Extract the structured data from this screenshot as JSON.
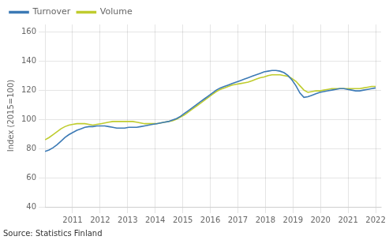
{
  "chart_data": {
    "type": "line",
    "ylabel": "Index (2015=100)",
    "annotations": [
      "Source: Statistics Finland"
    ],
    "x": [
      2010.0,
      2010.1446,
      2010.2892,
      2010.4337,
      2010.5783,
      2010.7229,
      2010.8675,
      2011.012,
      2011.1566,
      2011.3012,
      2011.4458,
      2011.5904,
      2011.7349,
      2011.8795,
      2012.0241,
      2012.1687,
      2012.3133,
      2012.4578,
      2012.6024,
      2012.747,
      2012.8916,
      2013.0361,
      2013.1807,
      2013.3253,
      2013.4699,
      2013.6145,
      2013.759,
      2013.9036,
      2014.0482,
      2014.1928,
      2014.3373,
      2014.4819,
      2014.6265,
      2014.7711,
      2014.9157,
      2015.0602,
      2015.2048,
      2015.3494,
      2015.494,
      2015.6386,
      2015.7831,
      2015.9277,
      2016.0723,
      2016.2169,
      2016.3614,
      2016.506,
      2016.6506,
      2016.7952,
      2016.9398,
      2017.0843,
      2017.2289,
      2017.3735,
      2017.5181,
      2017.6627,
      2017.8072,
      2017.9518,
      2018.0964,
      2018.241,
      2018.3855,
      2018.5301,
      2018.6747,
      2018.8193,
      2018.9639,
      2019.1084,
      2019.253,
      2019.3976,
      2019.5422,
      2019.6867,
      2019.8313,
      2019.9759,
      2020.1205,
      2020.2651,
      2020.4096,
      2020.5542,
      2020.6988,
      2020.8434,
      2020.988,
      2021.1325,
      2021.2771,
      2021.4217,
      2021.5663,
      2021.7108,
      2021.8554,
      2022.0
    ],
    "series": [
      {
        "name": "Turnover",
        "color": "#3c7ab5",
        "values": [
          78.0,
          79.0,
          80.5,
          82.5,
          85.0,
          87.5,
          89.5,
          91.0,
          92.5,
          93.5,
          94.5,
          95.0,
          95.0,
          95.5,
          95.5,
          95.5,
          95.0,
          94.5,
          94.0,
          94.0,
          94.0,
          94.5,
          94.5,
          94.5,
          95.0,
          95.5,
          96.0,
          96.5,
          97.0,
          97.5,
          98.0,
          98.5,
          99.5,
          100.5,
          102.0,
          104.0,
          106.0,
          108.0,
          110.0,
          112.0,
          114.0,
          116.0,
          118.0,
          120.0,
          121.5,
          122.5,
          123.5,
          124.5,
          125.5,
          126.5,
          127.5,
          128.5,
          129.5,
          130.5,
          131.5,
          132.5,
          133.0,
          133.5,
          133.5,
          133.0,
          132.0,
          130.0,
          127.0,
          123.0,
          118.0,
          115.0,
          115.5,
          116.5,
          117.5,
          118.5,
          119.0,
          119.5,
          120.0,
          120.5,
          121.0,
          121.0,
          120.5,
          120.0,
          119.5,
          119.5,
          120.0,
          120.5,
          121.0,
          121.5
        ]
      },
      {
        "name": "Volume",
        "color": "#bfcc2e",
        "values": [
          86.0,
          87.5,
          89.5,
          91.5,
          93.5,
          95.0,
          96.0,
          96.5,
          97.0,
          97.0,
          97.0,
          96.5,
          96.0,
          96.5,
          97.0,
          97.5,
          98.0,
          98.5,
          98.5,
          98.5,
          98.5,
          98.5,
          98.5,
          98.0,
          97.5,
          97.0,
          97.0,
          97.0,
          97.0,
          97.5,
          98.0,
          98.5,
          99.0,
          100.0,
          101.5,
          103.0,
          105.0,
          107.0,
          109.0,
          111.0,
          113.0,
          115.0,
          117.0,
          119.0,
          120.5,
          121.5,
          122.5,
          123.5,
          124.0,
          124.5,
          125.0,
          125.5,
          126.5,
          127.5,
          128.5,
          129.0,
          130.0,
          130.5,
          130.5,
          130.5,
          130.0,
          129.5,
          128.0,
          126.0,
          123.0,
          120.0,
          118.5,
          119.0,
          119.5,
          119.5,
          120.0,
          120.5,
          121.0,
          121.0,
          121.0,
          121.0,
          121.0,
          121.0,
          121.0,
          121.0,
          121.5,
          122.0,
          122.5,
          122.5
        ]
      }
    ],
    "xlim": [
      2010.0,
      2022.2
    ],
    "xticks": [
      2011,
      2012,
      2013,
      2014,
      2015,
      2016,
      2017,
      2018,
      2019,
      2020,
      2021,
      2022
    ],
    "ylim": [
      40,
      165
    ],
    "yticks": [
      40,
      60,
      80,
      100,
      120,
      140,
      160
    ],
    "grid": true,
    "legend": "upper left"
  }
}
